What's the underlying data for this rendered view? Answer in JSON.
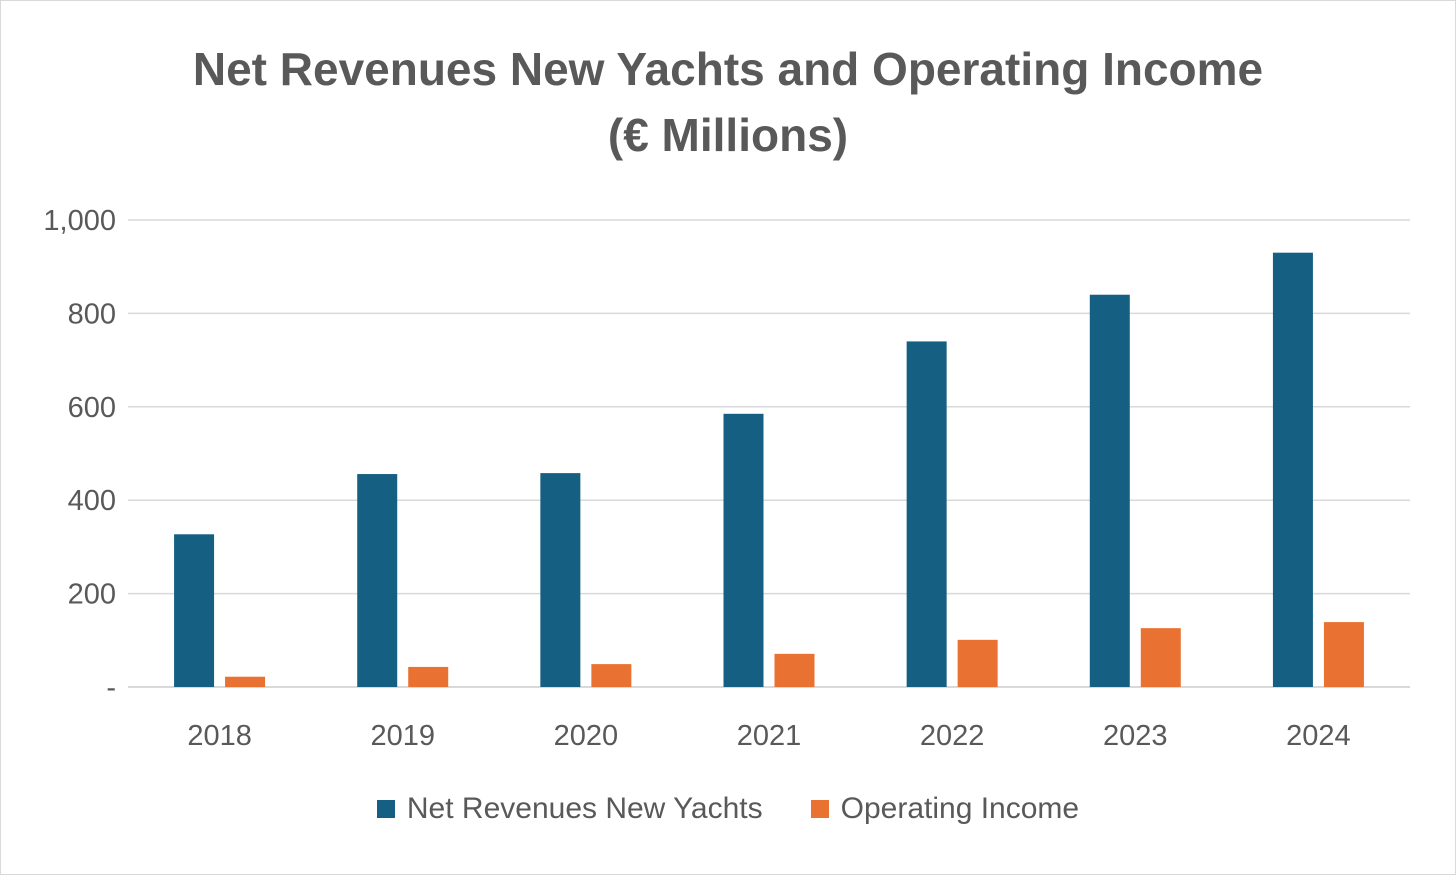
{
  "chart_data": {
    "type": "bar",
    "title": "Net Revenues New Yachts and Operating Income (€ Millions)",
    "title_lines": [
      "Net Revenues New Yachts and Operating Income",
      "(€ Millions)"
    ],
    "categories": [
      "2018",
      "2019",
      "2020",
      "2021",
      "2022",
      "2023",
      "2024"
    ],
    "series": [
      {
        "name": "Net Revenues New Yachts",
        "color": "#156082",
        "values": [
          327,
          456,
          458,
          585,
          740,
          840,
          930
        ]
      },
      {
        "name": "Operating Income",
        "color": "#E97132",
        "values": [
          22,
          43,
          49,
          71,
          101,
          126,
          139
        ]
      }
    ],
    "ylim": [
      0,
      1000
    ],
    "yticks": [
      0,
      200,
      400,
      600,
      800,
      1000
    ],
    "ytick_labels": [
      "-",
      "200",
      "400",
      "600",
      "800",
      "1,000"
    ],
    "xlabel": "",
    "ylabel": "",
    "grid": true,
    "legend_position": "bottom"
  }
}
